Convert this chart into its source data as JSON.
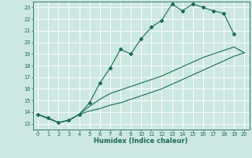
{
  "bg_color": "#cce8e0",
  "grid_color": "#ffffff",
  "line_color": "#1a6b5a",
  "xlabel": "Humidex (Indice chaleur)",
  "xlim": [
    -0.5,
    20.5
  ],
  "ylim": [
    12.5,
    23.5
  ],
  "xticks": [
    0,
    1,
    2,
    3,
    4,
    5,
    6,
    7,
    8,
    9,
    10,
    11,
    12,
    13,
    14,
    15,
    16,
    17,
    18,
    19,
    20
  ],
  "yticks": [
    13,
    14,
    15,
    16,
    17,
    18,
    19,
    20,
    21,
    22,
    23
  ],
  "line1_x": [
    0,
    1,
    2,
    3,
    4,
    5,
    6,
    7,
    8,
    9,
    10,
    11,
    12,
    13,
    14,
    15,
    16,
    17,
    18,
    19
  ],
  "line1_y": [
    13.8,
    13.5,
    13.1,
    13.3,
    13.8,
    14.8,
    16.5,
    17.8,
    19.4,
    19.0,
    20.3,
    21.3,
    21.9,
    23.3,
    22.7,
    23.3,
    23.0,
    22.7,
    22.5,
    20.7
  ],
  "line2_x": [
    0,
    2,
    3,
    4,
    5,
    6,
    7,
    8,
    9,
    10,
    11,
    12,
    13,
    14,
    15,
    16,
    17,
    18,
    19,
    20
  ],
  "line2_y": [
    13.8,
    13.1,
    13.3,
    13.8,
    14.1,
    14.3,
    14.6,
    14.8,
    15.1,
    15.4,
    15.7,
    16.0,
    16.4,
    16.8,
    17.2,
    17.6,
    18.0,
    18.4,
    18.8,
    19.1
  ],
  "line3_x": [
    0,
    2,
    3,
    4,
    5,
    6,
    7,
    8,
    9,
    10,
    11,
    12,
    13,
    14,
    15,
    16,
    17,
    18,
    19,
    20
  ],
  "line3_y": [
    13.8,
    13.1,
    13.3,
    13.8,
    14.5,
    15.1,
    15.6,
    15.9,
    16.2,
    16.5,
    16.8,
    17.1,
    17.5,
    17.9,
    18.3,
    18.7,
    19.0,
    19.3,
    19.6,
    19.1
  ]
}
